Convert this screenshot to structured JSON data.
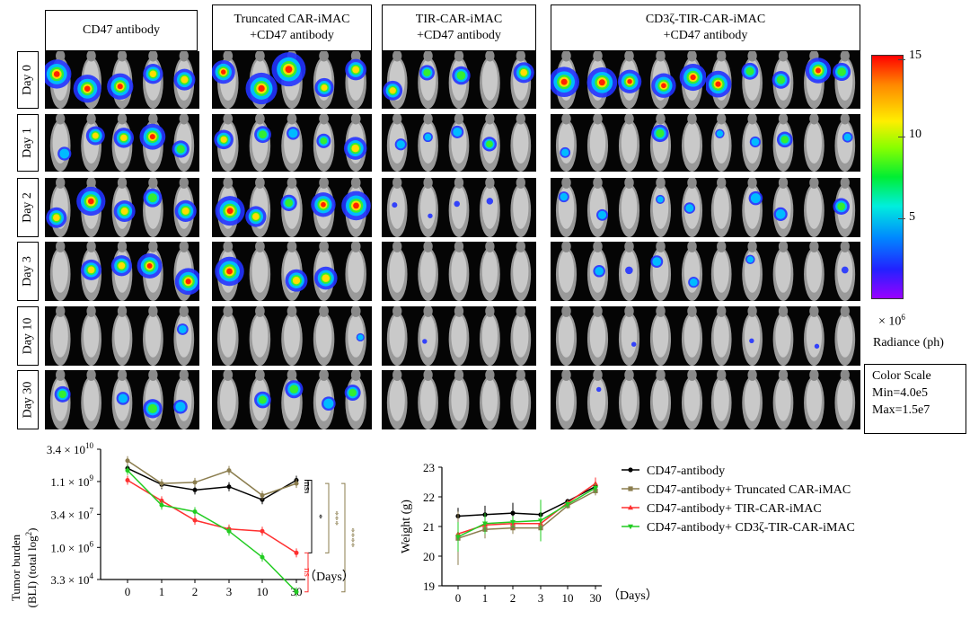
{
  "groups": [
    {
      "label_line1": "CD47 antibody",
      "label_line2": ""
    },
    {
      "label_line1": "Truncated CAR-iMAC",
      "label_line2": "+CD47 antibody"
    },
    {
      "label_line1": "TIR-CAR-iMAC",
      "label_line2": "+CD47 antibody"
    },
    {
      "label_line1": "CD3ζ-TIR-CAR-iMAC",
      "label_line2": "+CD47 antibody"
    }
  ],
  "days": [
    "Day 0",
    "Day 1",
    "Day 2",
    "Day 3",
    "Day 10",
    "Day 30"
  ],
  "colorbar": {
    "ticks": [
      "15",
      "10",
      "5"
    ],
    "multiplier": "× 10",
    "exponent": "6",
    "unit_label": "Radiance (ph)",
    "color_scale_title": "Color Scale",
    "min_label": "Min=4.0e5",
    "max_label": "Max=1.5e7"
  },
  "chart_data": [
    {
      "type": "line",
      "ylabel_line1": "Tumor burden",
      "ylabel_line2": "(BLI) (total log",
      "ylabel_sup": "2",
      "ylabel_end": ")",
      "xlabel": "（Days）",
      "y_scale": "log",
      "y_ticks": [
        {
          "base": "3.4 × 10",
          "exp": "10",
          "log": 10.53
        },
        {
          "base": "1.1 × 10",
          "exp": "9",
          "log": 9.04
        },
        {
          "base": "3.4 × 10",
          "exp": "7",
          "log": 7.53
        },
        {
          "base": "1.0 × 10",
          "exp": "6",
          "log": 6.0
        },
        {
          "base": "3.3 × 10",
          "exp": "4",
          "log": 4.52
        }
      ],
      "categories": [
        "0",
        "1",
        "2",
        "3",
        "10",
        "30"
      ],
      "series": [
        {
          "color": "#000000",
          "values": [
            9.65,
            8.9,
            8.65,
            8.8,
            8.2,
            9.1
          ]
        },
        {
          "color": "#8b7d4e",
          "values": [
            10.0,
            8.95,
            9.0,
            9.55,
            8.4,
            8.95
          ]
        },
        {
          "color": "#ff3030",
          "values": [
            9.1,
            8.15,
            7.25,
            6.85,
            6.75,
            5.75
          ]
        },
        {
          "color": "#22cc22",
          "values": [
            9.55,
            7.95,
            7.65,
            6.75,
            5.55,
            3.95
          ]
        }
      ],
      "significance": [
        {
          "label": "ns",
          "color": "#000000"
        },
        {
          "label": "*",
          "color": "#000000"
        },
        {
          "label": "ns",
          "color": "#ff3030"
        },
        {
          "label": "***",
          "color": "#8b7d4e"
        },
        {
          "label": "****",
          "color": "#8b7d4e"
        }
      ]
    },
    {
      "type": "line",
      "ylabel": "Weight (g)",
      "xlabel": "（Days）",
      "ylim": [
        19,
        23
      ],
      "y_ticks": [
        "19",
        "20",
        "21",
        "22",
        "23"
      ],
      "categories": [
        "0",
        "1",
        "2",
        "3",
        "10",
        "30"
      ],
      "series": [
        {
          "name": "CD47-antibody",
          "color": "#000000",
          "marker": "circle",
          "values": [
            21.35,
            21.4,
            21.45,
            21.4,
            21.85,
            22.35
          ]
        },
        {
          "name": "CD47-antibody+ Truncated CAR-iMAC",
          "color": "#8b7d4e",
          "marker": "square",
          "values": [
            20.6,
            20.9,
            20.95,
            20.95,
            21.7,
            22.2
          ]
        },
        {
          "name": "CD47-antibody+ TIR-CAR-iMAC",
          "color": "#ff3030",
          "marker": "triangle-up",
          "values": [
            20.75,
            21.05,
            21.1,
            21.1,
            21.8,
            22.45
          ]
        },
        {
          "name": "CD47-antibody+ CD3ζ-TIR-CAR-iMAC",
          "color": "#22cc22",
          "marker": "triangle-down",
          "values": [
            20.65,
            21.1,
            21.15,
            21.2,
            21.75,
            22.3
          ]
        }
      ]
    }
  ]
}
